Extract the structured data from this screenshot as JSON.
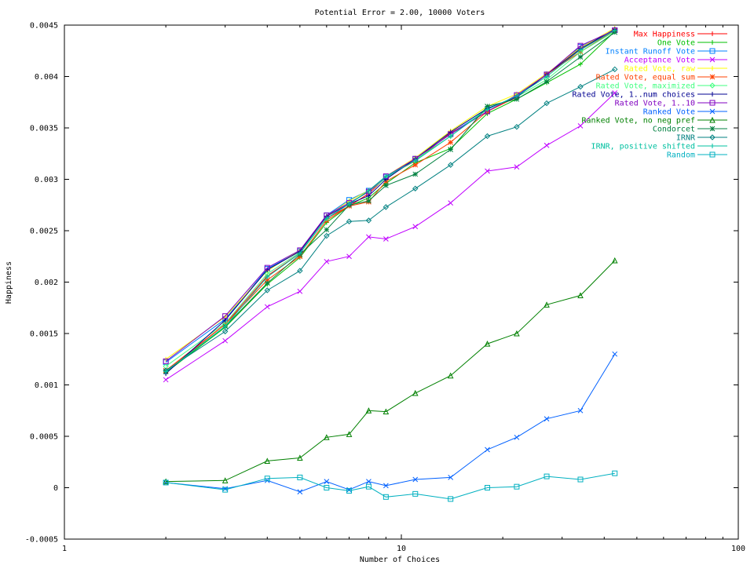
{
  "chart_data": {
    "type": "line",
    "title": "Potential Error = 2.00, 10000 Voters",
    "xlabel": "Number of Choices",
    "ylabel": "Happiness",
    "xscale": "log",
    "xlim": [
      1,
      100
    ],
    "ylim": [
      -0.0005,
      0.0045
    ],
    "x_ticks": [
      1,
      10,
      100
    ],
    "x_tick_labels": [
      "1",
      "10",
      "100"
    ],
    "y_ticks": [
      -0.0005,
      0,
      0.0005,
      0.001,
      0.0015,
      0.002,
      0.0025,
      0.003,
      0.0035,
      0.004,
      0.0045
    ],
    "y_tick_labels": [
      "-0.0005",
      "0",
      "0.0005",
      "0.001",
      "0.0015",
      "0.002",
      "0.0025",
      "0.003",
      "0.0035",
      "0.004",
      "0.0045"
    ],
    "grid": false,
    "legend_position": "top-right",
    "x": [
      2,
      3,
      4,
      5,
      6,
      7,
      8,
      9,
      11,
      14,
      18,
      22,
      27,
      34,
      43
    ],
    "series": [
      {
        "name": "Max Happiness",
        "color": "#ff0000",
        "marker": "plus",
        "values": [
          0.00113,
          0.00159,
          0.00206,
          0.00228,
          0.00262,
          0.00274,
          0.00286,
          0.00302,
          0.00318,
          0.00345,
          0.00366,
          0.00381,
          0.00402,
          0.00426,
          0.00446
        ]
      },
      {
        "name": "One Vote",
        "color": "#00c000",
        "marker": "plus",
        "values": [
          0.00112,
          0.00156,
          0.00198,
          0.00224,
          0.00258,
          0.00274,
          0.00282,
          0.00296,
          0.00316,
          0.0033,
          0.00364,
          0.00378,
          0.00394,
          0.00412,
          0.00444
        ]
      },
      {
        "name": "Instant Runoff Vote",
        "color": "#0080ff",
        "marker": "square",
        "values": [
          0.00122,
          0.00164,
          0.00213,
          0.0023,
          0.00265,
          0.0028,
          0.00289,
          0.00302,
          0.0032,
          0.00344,
          0.00368,
          0.00381,
          0.00402,
          0.00429,
          0.00445
        ]
      },
      {
        "name": "Acceptance Vote",
        "color": "#c000ff",
        "marker": "x",
        "values": [
          0.00105,
          0.00143,
          0.00176,
          0.00191,
          0.0022,
          0.00225,
          0.00244,
          0.00242,
          0.00254,
          0.00277,
          0.00308,
          0.00312,
          0.00333,
          0.00352,
          0.00384
        ]
      },
      {
        "name": "Rated Vote, raw",
        "color": "#ffff00",
        "marker": "plus",
        "values": [
          0.00125,
          0.00166,
          0.00211,
          0.00231,
          0.00264,
          0.00279,
          0.00289,
          0.00303,
          0.00321,
          0.00347,
          0.00371,
          0.00383,
          0.00403,
          0.00428,
          0.00447
        ]
      },
      {
        "name": "Rated Vote, equal sum",
        "color": "#ff4000",
        "marker": "star",
        "values": [
          0.00114,
          0.00159,
          0.00202,
          0.00225,
          0.0026,
          0.00274,
          0.00278,
          0.00298,
          0.00314,
          0.00336,
          0.00366,
          0.0038,
          0.00402,
          0.00424,
          0.00445
        ]
      },
      {
        "name": "Rated Vote, maximized",
        "color": "#40ff80",
        "marker": "diamond",
        "values": [
          0.00118,
          0.0016,
          0.00208,
          0.00229,
          0.00262,
          0.00276,
          0.00288,
          0.00301,
          0.00319,
          0.00342,
          0.00369,
          0.0038,
          0.00397,
          0.00424,
          0.00444
        ]
      },
      {
        "name": "Rated Vote, 1..num choices",
        "color": "#000090",
        "marker": "plus",
        "values": [
          0.00111,
          0.00163,
          0.00212,
          0.0023,
          0.00264,
          0.00276,
          0.00284,
          0.003,
          0.0032,
          0.00346,
          0.00369,
          0.0038,
          0.00402,
          0.00427,
          0.00446
        ]
      },
      {
        "name": "Rated Vote, 1..10",
        "color": "#8000c0",
        "marker": "square",
        "values": [
          0.00123,
          0.00167,
          0.00214,
          0.00231,
          0.00265,
          0.00277,
          0.00288,
          0.00303,
          0.0032,
          0.00344,
          0.00366,
          0.00382,
          0.00402,
          0.0043,
          0.00445
        ]
      },
      {
        "name": "Ranked Vote",
        "color": "#0060ff",
        "marker": "x",
        "values": [
          5e-05,
          -1e-05,
          7e-05,
          -4e-05,
          6e-05,
          -2e-05,
          6e-05,
          2e-05,
          8e-05,
          0.0001,
          0.00037,
          0.00049,
          0.00067,
          0.00075,
          0.0013
        ]
      },
      {
        "name": "Ranked Vote, no neg pref",
        "color": "#008000",
        "marker": "triangle",
        "values": [
          6e-05,
          7e-05,
          0.00026,
          0.00029,
          0.00049,
          0.00052,
          0.00075,
          0.00074,
          0.00092,
          0.00109,
          0.0014,
          0.0015,
          0.00178,
          0.00187,
          0.00221
        ]
      },
      {
        "name": "Condorcet",
        "color": "#008040",
        "marker": "star",
        "values": [
          0.00113,
          0.00157,
          0.00199,
          0.00227,
          0.00251,
          0.00275,
          0.00279,
          0.00294,
          0.00305,
          0.00329,
          0.00371,
          0.00378,
          0.00395,
          0.00419,
          0.00443
        ]
      },
      {
        "name": "IRNR",
        "color": "#008080",
        "marker": "diamond",
        "values": [
          0.00114,
          0.00152,
          0.00192,
          0.00211,
          0.00245,
          0.00259,
          0.0026,
          0.00273,
          0.00291,
          0.00314,
          0.00342,
          0.00351,
          0.00374,
          0.0039,
          0.00407
        ]
      },
      {
        "name": "IRNR, positive shifted",
        "color": "#00c0a0",
        "marker": "plus",
        "values": [
          0.00113,
          0.00157,
          0.00205,
          0.00228,
          0.00262,
          0.00276,
          0.00289,
          0.00303,
          0.00318,
          0.00342,
          0.00368,
          0.00381,
          0.004,
          0.00426,
          0.00445
        ]
      },
      {
        "name": "Random",
        "color": "#00b0c0",
        "marker": "square",
        "values": [
          5e-05,
          -2e-05,
          9e-05,
          0.0001,
          0.0,
          -3e-05,
          1e-05,
          -9e-05,
          -6e-05,
          -0.00011,
          0.0,
          1e-05,
          0.00011,
          8e-05,
          0.00014
        ]
      }
    ]
  }
}
